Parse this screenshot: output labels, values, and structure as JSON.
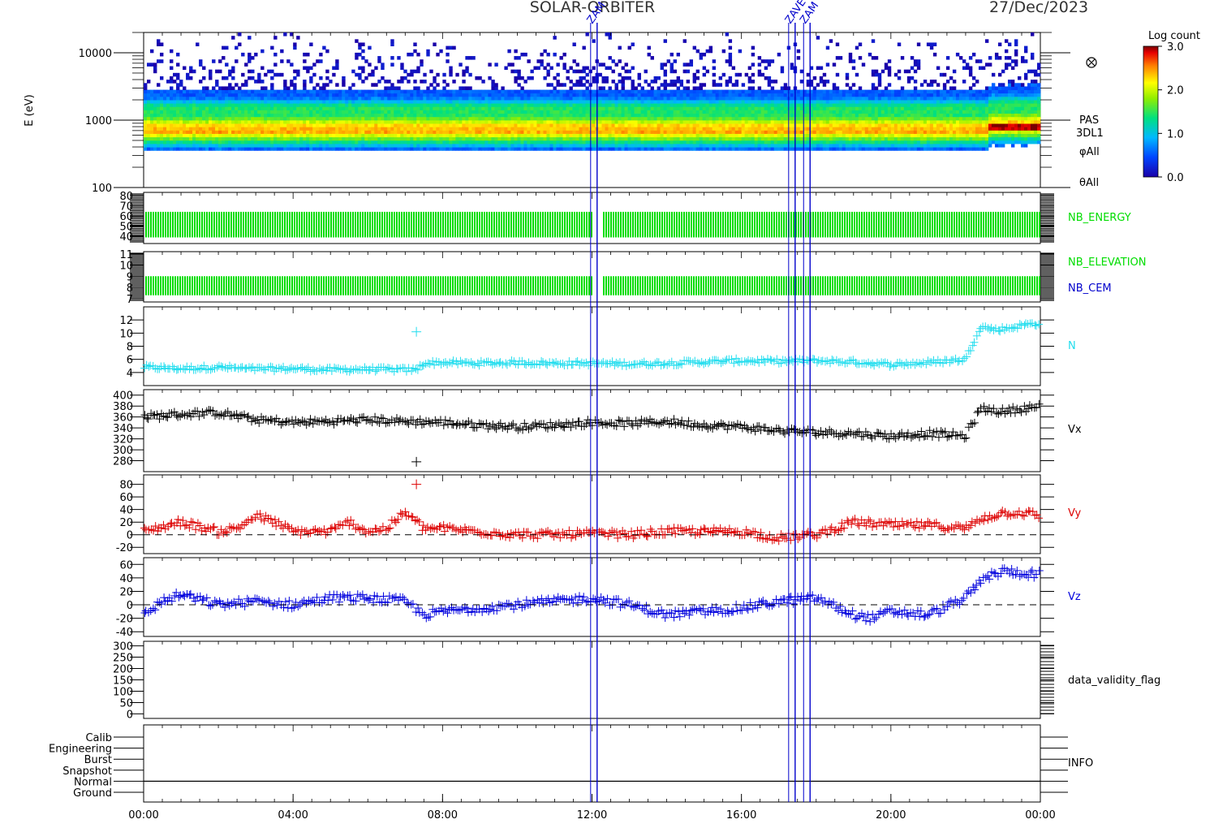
{
  "header": {
    "mission": "SOLAR-ORBITER",
    "date": "27/Dec/2023",
    "event_markers": [
      {
        "label": "ZAM",
        "hour": 12.05
      },
      {
        "label": "ZAVE",
        "hour": 17.35
      },
      {
        "label": "ZAM",
        "hour": 17.75
      }
    ]
  },
  "x_axis": {
    "range_hours": [
      0,
      24
    ],
    "tick_labels": [
      "00:00",
      "04:00",
      "08:00",
      "12:00",
      "16:00",
      "20:00",
      "00:00"
    ]
  },
  "colorbar": {
    "title": "Log count",
    "range": [
      0,
      3
    ],
    "tick_labels": [
      "0.0",
      "1.0",
      "2.0",
      "3.0"
    ]
  },
  "panels": {
    "spectrogram": {
      "ylabel": "E (eV)",
      "y_scale": "log",
      "ylim": [
        100,
        20000
      ],
      "tick_labels": [
        "100",
        "1000",
        "10000"
      ],
      "side_labels": [
        "PAS",
        "3DL1",
        "φAll",
        "θAll"
      ]
    },
    "nb_energy": {
      "label": "NB_ENERGY",
      "color": "#00dd00",
      "ylim": [
        33,
        83
      ],
      "tick_labels": [
        "40",
        "50",
        "60",
        "70",
        "80"
      ]
    },
    "nb_elevation": {
      "label": "NB_ELEVATION",
      "label2": "NB_CEM",
      "color": "#00dd00",
      "color2": "#0000cc",
      "ylim": [
        6.7,
        11.2
      ],
      "tick_labels": [
        "7",
        "8",
        "9",
        "10",
        "11"
      ]
    },
    "n": {
      "label": "N",
      "color": "#22ddee",
      "ylim": [
        2,
        14
      ],
      "tick_labels": [
        "4",
        "6",
        "8",
        "10",
        "12"
      ]
    },
    "vx": {
      "label": "Vx",
      "color": "#000000",
      "ylim": [
        260,
        410
      ],
      "tick_labels": [
        "280",
        "300",
        "320",
        "340",
        "360",
        "380",
        "400"
      ]
    },
    "vy": {
      "label": "Vy",
      "color": "#dd0000",
      "ylim": [
        -30,
        95
      ],
      "tick_labels": [
        "-20",
        "0",
        "20",
        "40",
        "60",
        "80"
      ]
    },
    "vz": {
      "label": "Vz",
      "color": "#0000dd",
      "ylim": [
        -47,
        70
      ],
      "tick_labels": [
        "-40",
        "-20",
        "0",
        "20",
        "40",
        "60"
      ]
    },
    "validity": {
      "label": "data_validity_flag",
      "ylim": [
        -20,
        320
      ],
      "tick_labels": [
        "0",
        "50",
        "100",
        "150",
        "200",
        "250",
        "300"
      ]
    },
    "info": {
      "label": "INFO",
      "levels": [
        "Calib",
        "Engineering",
        "Burst",
        "Snapshot",
        "Normal",
        "Ground"
      ]
    }
  },
  "chart_data": {
    "type": "scatter",
    "x_unit": "hours of 27/Dec/2023",
    "xlim": [
      0,
      24
    ],
    "series": [
      {
        "name": "N",
        "x": [
          0,
          1,
          2,
          3,
          4,
          5,
          6,
          7,
          7.3,
          7.5,
          8,
          9,
          10,
          11,
          12,
          13,
          14,
          15,
          16,
          17,
          18,
          19,
          20,
          21,
          22,
          22.4,
          22.8,
          23.2,
          23.6,
          24
        ],
        "y": [
          4.8,
          4.6,
          4.8,
          4.5,
          4.6,
          4.4,
          4.5,
          4.4,
          4.4,
          5.4,
          5.5,
          5.4,
          5.5,
          5.4,
          5.4,
          5.3,
          5.4,
          5.6,
          5.8,
          5.7,
          5.8,
          5.6,
          5.2,
          5.5,
          6.0,
          11.0,
          10.5,
          10.8,
          11.3,
          11.5
        ]
      },
      {
        "name": "Vx",
        "x": [
          0,
          1,
          2,
          3,
          4,
          5,
          6,
          7,
          8,
          9,
          10,
          11,
          12,
          13,
          14,
          15,
          16,
          17,
          18,
          19,
          20,
          21,
          22,
          22.4,
          23,
          23.5,
          24
        ],
        "y": [
          360,
          365,
          368,
          355,
          350,
          352,
          355,
          352,
          350,
          345,
          342,
          345,
          350,
          348,
          352,
          345,
          342,
          335,
          332,
          330,
          325,
          330,
          325,
          375,
          370,
          375,
          380
        ]
      },
      {
        "name": "Vy",
        "x": [
          0,
          1,
          2,
          2.5,
          3,
          3.5,
          4,
          5,
          5.5,
          6,
          6.5,
          7,
          7.5,
          8,
          9,
          10,
          11,
          12,
          13,
          14,
          15,
          16,
          17,
          18,
          19,
          20,
          21,
          22,
          22.4,
          23,
          23.5,
          24
        ],
        "y": [
          5,
          20,
          5,
          10,
          30,
          20,
          5,
          5,
          20,
          5,
          10,
          35,
          10,
          10,
          5,
          0,
          0,
          2,
          0,
          5,
          5,
          5,
          -5,
          0,
          20,
          15,
          15,
          10,
          25,
          35,
          35,
          30
        ]
      },
      {
        "name": "Vz",
        "x": [
          0,
          0.5,
          1,
          2,
          3,
          4,
          5,
          6,
          7,
          7.5,
          8,
          9,
          10,
          11,
          12,
          13,
          14,
          15,
          16,
          17,
          18,
          19,
          19.5,
          20,
          21,
          22,
          22.5,
          23,
          24
        ],
        "y": [
          -15,
          5,
          15,
          0,
          5,
          0,
          10,
          10,
          5,
          -15,
          -10,
          -5,
          0,
          5,
          10,
          0,
          -15,
          -10,
          -5,
          5,
          10,
          -15,
          -20,
          -10,
          -15,
          10,
          40,
          50,
          45
        ]
      },
      {
        "name": "NB_ENERGY",
        "y_band": [
          39,
          64
        ],
        "x_coverage": [
          [
            0,
            24
          ]
        ]
      },
      {
        "name": "NB_ELEVATION",
        "y_band": [
          7.3,
          9.0
        ],
        "x_coverage": [
          [
            0,
            24
          ]
        ]
      }
    ],
    "spectrogram": {
      "type": "heatmap",
      "y_scale": "log",
      "ylim": [
        100,
        20000
      ],
      "energy_peak_eV_before_22.6h": 700,
      "energy_peak_eV_after_22.6h": 800,
      "count_range_log": [
        0,
        3
      ]
    }
  }
}
